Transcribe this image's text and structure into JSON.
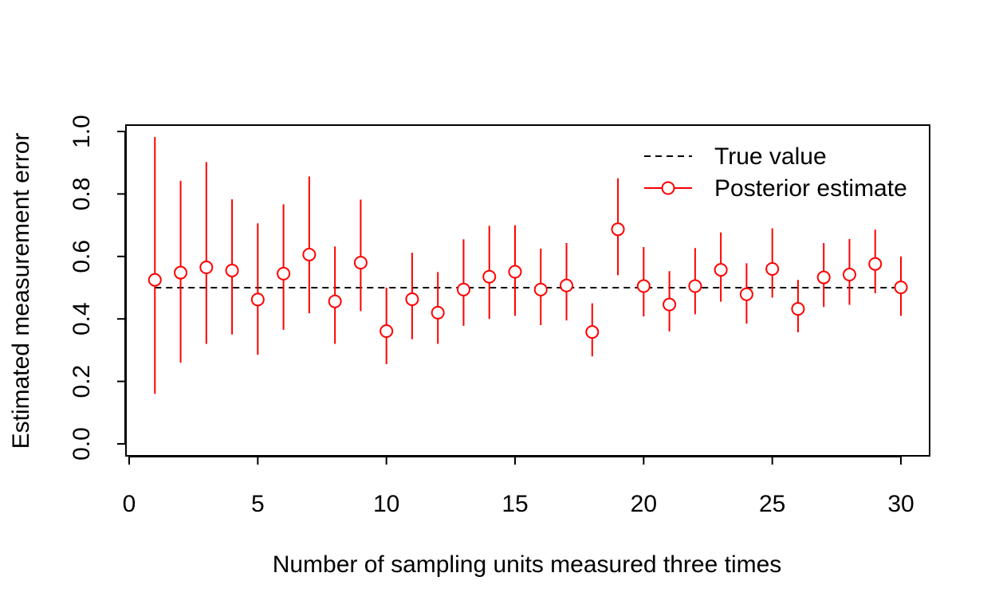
{
  "chart_data": {
    "type": "scatter",
    "title": "",
    "xlabel": "Number of sampling units measured three times",
    "ylabel": "Estimated measurement error",
    "xlim": [
      0,
      31
    ],
    "ylim": [
      0,
      1.0
    ],
    "x_ticks": [
      0,
      5,
      10,
      15,
      20,
      25,
      30
    ],
    "x_tick_labels": [
      "0",
      "5",
      "10",
      "15",
      "20",
      "25",
      "30"
    ],
    "y_ticks": [
      0.0,
      0.2,
      0.4,
      0.6,
      0.8,
      1.0
    ],
    "y_tick_labels": [
      "0.0",
      "0.2",
      "0.4",
      "0.6",
      "0.8",
      "1.0"
    ],
    "grid": false,
    "legend_position": "top-right",
    "reference_line": {
      "name": "True value",
      "y": 0.5,
      "x_range": [
        1,
        30
      ],
      "color": "#000000",
      "style": "dashed"
    },
    "series": [
      {
        "name": "Posterior estimate",
        "color": "#ff0000",
        "marker": "open-circle",
        "x": [
          1,
          2,
          3,
          4,
          5,
          6,
          7,
          8,
          9,
          10,
          11,
          12,
          13,
          14,
          15,
          16,
          17,
          18,
          19,
          20,
          21,
          22,
          23,
          24,
          25,
          26,
          27,
          28,
          29,
          30
        ],
        "y": [
          0.525,
          0.548,
          0.565,
          0.555,
          0.462,
          0.545,
          0.606,
          0.456,
          0.58,
          0.361,
          0.463,
          0.42,
          0.494,
          0.535,
          0.551,
          0.494,
          0.507,
          0.358,
          0.687,
          0.505,
          0.446,
          0.505,
          0.557,
          0.479,
          0.56,
          0.432,
          0.533,
          0.542,
          0.576,
          0.501
        ],
        "lower": [
          0.16,
          0.26,
          0.32,
          0.35,
          0.285,
          0.365,
          0.418,
          0.32,
          0.425,
          0.255,
          0.335,
          0.32,
          0.378,
          0.4,
          0.41,
          0.38,
          0.395,
          0.28,
          0.54,
          0.408,
          0.36,
          0.415,
          0.455,
          0.385,
          0.468,
          0.357,
          0.438,
          0.445,
          0.482,
          0.41
        ],
        "upper": [
          0.982,
          0.842,
          0.902,
          0.783,
          0.706,
          0.767,
          0.856,
          0.632,
          0.782,
          0.5,
          0.612,
          0.55,
          0.655,
          0.698,
          0.7,
          0.625,
          0.643,
          0.45,
          0.85,
          0.63,
          0.553,
          0.627,
          0.677,
          0.578,
          0.69,
          0.525,
          0.643,
          0.656,
          0.686,
          0.6
        ]
      }
    ]
  }
}
